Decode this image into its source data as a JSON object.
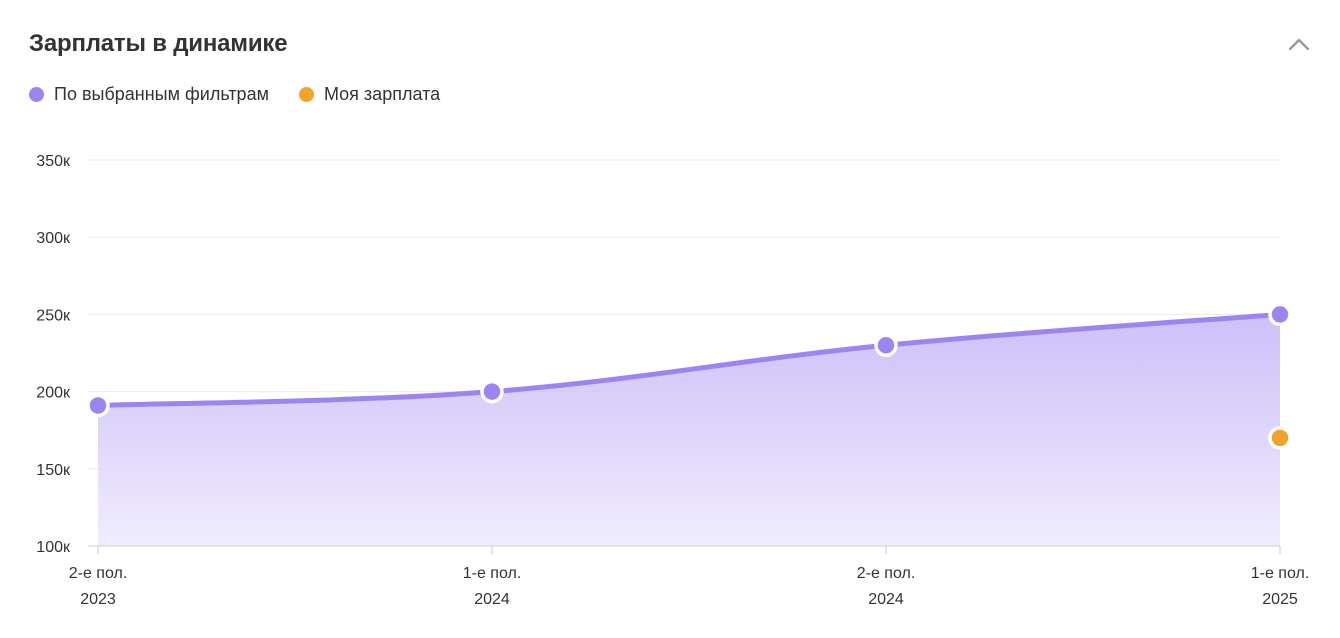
{
  "header": {
    "title": "Зарплаты в динамике"
  },
  "legend": {
    "items": [
      {
        "label": "По выбранным фильтрам",
        "color": "#9c85f2"
      },
      {
        "label": "Моя зарплата",
        "color": "#f2a42a"
      }
    ]
  },
  "icons": {
    "collapse": "chevron-up-icon"
  },
  "chart_data": {
    "type": "area",
    "categories": [
      [
        "2-е пол.",
        "2023"
      ],
      [
        "1-е пол.",
        "2024"
      ],
      [
        "2-е пол.",
        "2024"
      ],
      [
        "1-е пол.",
        "2025"
      ]
    ],
    "series": [
      {
        "name": "По выбранным фильтрам",
        "color": "#9c85f2",
        "values": [
          191000,
          200000,
          230000,
          250000
        ]
      },
      {
        "name": "Моя зарплата",
        "color": "#f2a42a",
        "values": [
          null,
          null,
          null,
          170000
        ]
      }
    ],
    "yticks": [
      {
        "value": 100000,
        "label": "100к"
      },
      {
        "value": 150000,
        "label": "150к"
      },
      {
        "value": 200000,
        "label": "200к"
      },
      {
        "value": 250000,
        "label": "250к"
      },
      {
        "value": 300000,
        "label": "300к"
      },
      {
        "value": 350000,
        "label": "350к"
      }
    ],
    "ylim": [
      100000,
      350000
    ],
    "title": "",
    "xlabel": "",
    "ylabel": "",
    "grid": true,
    "legend_position": "top-left"
  }
}
